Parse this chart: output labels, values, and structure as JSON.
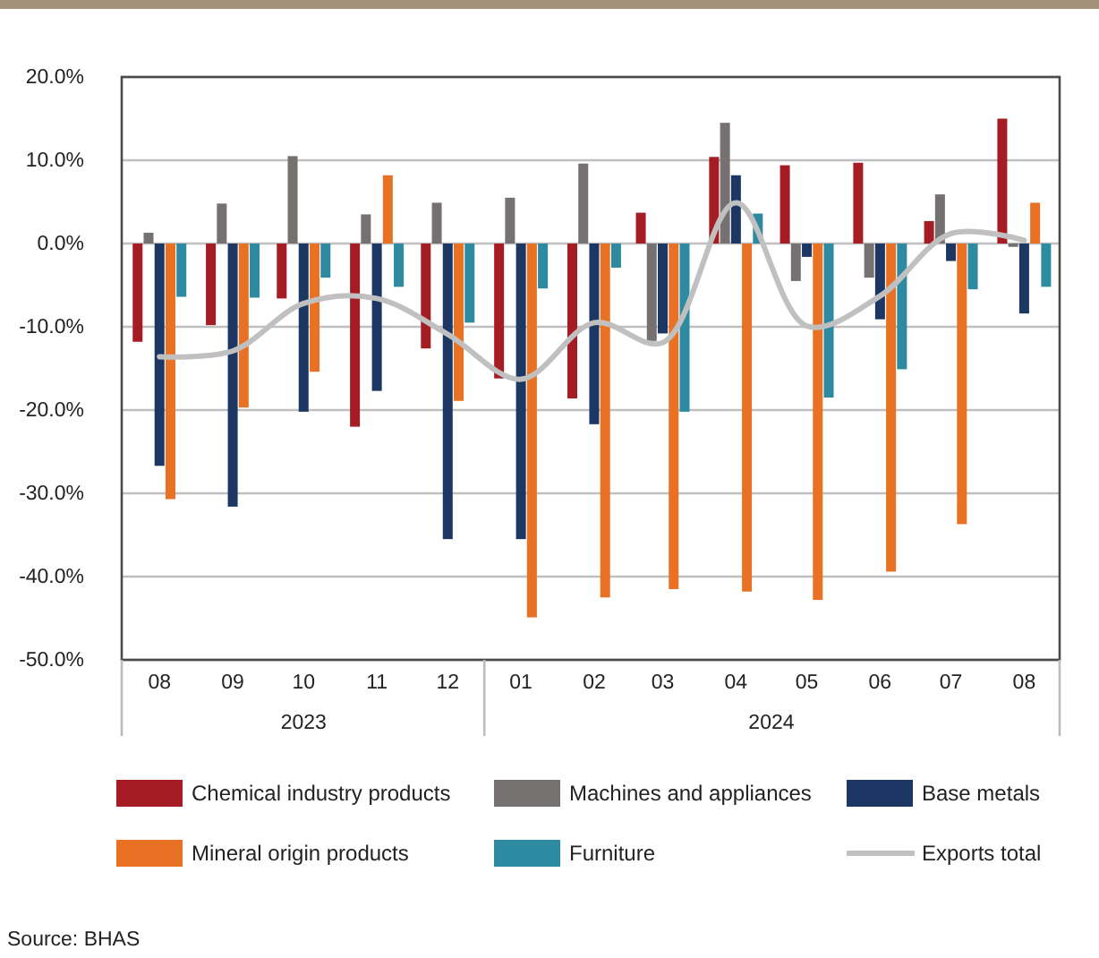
{
  "chart_data": {
    "type": "bar",
    "x": [
      "2023-08",
      "2023-09",
      "2023-10",
      "2023-11",
      "2023-12",
      "2024-01",
      "2024-02",
      "2024-03",
      "2024-04",
      "2024-05",
      "2024-06",
      "2024-07",
      "2024-08"
    ],
    "xlim": [
      "2023-07-16",
      "2024-08-16"
    ],
    "xticks": [
      {
        "value": "2023-08",
        "label": "08"
      },
      {
        "value": "2023-09",
        "label": "09"
      },
      {
        "value": "2023-10",
        "label": "10"
      },
      {
        "value": "2023-11",
        "label": "11"
      },
      {
        "value": "2023-12",
        "label": "12"
      },
      {
        "value": "2024-01",
        "label": "01"
      },
      {
        "value": "2024-02",
        "label": "02"
      },
      {
        "value": "2024-03",
        "label": "03"
      },
      {
        "value": "2024-04",
        "label": "04"
      },
      {
        "value": "2024-05",
        "label": "05"
      },
      {
        "value": "2024-06",
        "label": "06"
      },
      {
        "value": "2024-07",
        "label": "07"
      },
      {
        "value": "2024-08",
        "label": "08"
      }
    ],
    "x2lim": [
      "2023-07-16",
      "2024-08-16"
    ],
    "x2ticks": [
      {
        "value": "2023-10-01",
        "label": "2023"
      },
      {
        "value": "2024-04-16",
        "label": "2024"
      }
    ],
    "series": [
      {
        "name": "Chemical industry products",
        "color": "#a51c24",
        "values": [
          -11.8,
          -9.8,
          -6.6,
          -22.0,
          -12.6,
          -16.2,
          -18.6,
          3.7,
          10.4,
          9.4,
          9.7,
          2.7,
          15.0
        ]
      },
      {
        "name": "Machines and appliances",
        "color": "#767171",
        "values": [
          1.3,
          4.8,
          10.5,
          3.5,
          4.9,
          5.5,
          9.6,
          -11.7,
          14.5,
          -4.5,
          -4.1,
          5.9,
          -0.4
        ]
      },
      {
        "name": "Base metals",
        "color": "#1c3764",
        "values": [
          -26.7,
          -31.6,
          -20.2,
          -17.7,
          -35.5,
          -35.5,
          -21.7,
          -10.8,
          8.2,
          -1.6,
          -9.1,
          -2.1,
          -8.4
        ]
      },
      {
        "name": "Mineral origin products",
        "color": "#e87124",
        "values": [
          -30.7,
          -19.7,
          -15.4,
          8.2,
          -18.9,
          -44.9,
          -42.5,
          -41.5,
          -41.8,
          -42.8,
          -39.4,
          -33.7,
          4.9
        ]
      },
      {
        "name": "Furniture",
        "color": "#2e8aa0",
        "values": [
          -6.4,
          -6.5,
          -4.1,
          -5.2,
          -9.5,
          -5.4,
          -2.9,
          -20.2,
          3.6,
          -18.5,
          -15.1,
          -5.5,
          -5.2
        ]
      },
      {
        "name": "Exports total",
        "type": "line",
        "color": "#c0c0c0",
        "values": [
          -13.6,
          -12.9,
          -7.2,
          -6.6,
          -10.9,
          -16.3,
          -9.5,
          -11.9,
          4.9,
          -9.9,
          -6.3,
          1.2,
          0.4
        ]
      }
    ],
    "ylim": [
      -50,
      20
    ],
    "yticks": [
      {
        "value": 20,
        "label": "20.0%"
      },
      {
        "value": 10,
        "label": "10.0%"
      },
      {
        "value": 0,
        "label": "0.0%"
      },
      {
        "value": -10,
        "label": "-10.0%"
      },
      {
        "value": -20,
        "label": "-20.0%"
      },
      {
        "value": -30,
        "label": "-30.0%"
      },
      {
        "value": -40,
        "label": "-40.0%"
      },
      {
        "value": -50,
        "label": "-50.0%"
      }
    ],
    "grid": "y",
    "legend": "bottom",
    "annotations": [
      "Source: BHAS"
    ]
  }
}
